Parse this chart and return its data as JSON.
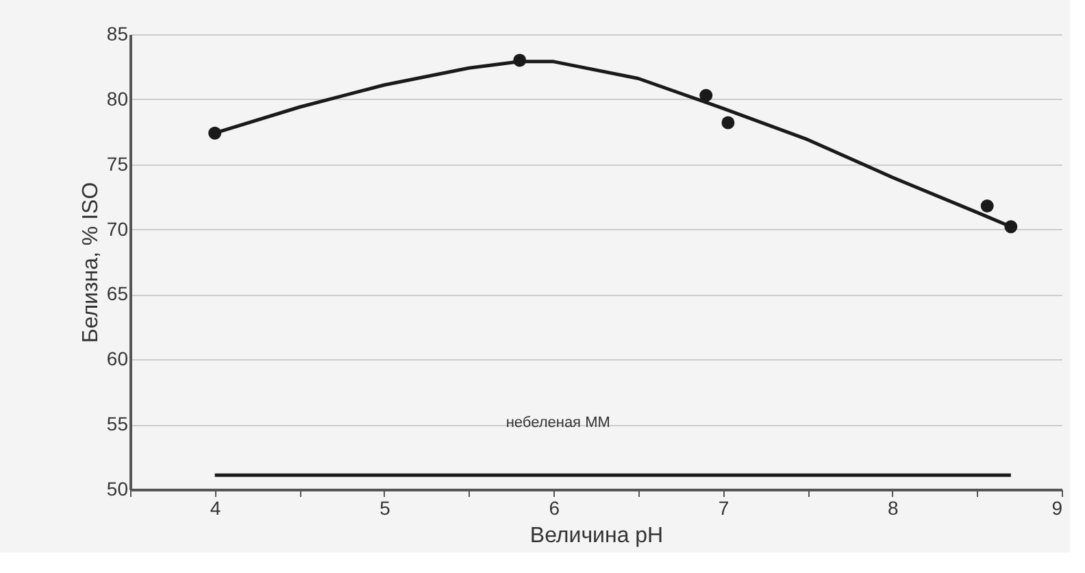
{
  "chart_data": {
    "type": "scatter",
    "xlabel": "Величина pH",
    "ylabel": "Белизна, % ISO",
    "xlim": [
      3.5,
      9
    ],
    "xticks": [
      {
        "value": 3.5,
        "label": null
      },
      4,
      {
        "value": 4.5,
        "label": null
      },
      5,
      {
        "value": 5.5,
        "label": null
      },
      6,
      {
        "value": 6.5,
        "label": null
      },
      7,
      {
        "value": 7.5,
        "label": null
      },
      8,
      {
        "value": 8.5,
        "label": null
      },
      9
    ],
    "ylim": [
      50,
      85
    ],
    "yticks": [
      50,
      55,
      60,
      65,
      70,
      75,
      80,
      85
    ],
    "grid": "y",
    "legend": false,
    "series": [
      {
        "color": "#1a1a1a",
        "marker": "circle",
        "x": [
          4,
          5.8,
          6.9,
          7.03,
          8.56,
          8.7
        ],
        "values": [
          77.4,
          83.0,
          80.3,
          78.2,
          71.8,
          70.2
        ]
      },
      {
        "type": "line",
        "color": "#1a1a1a",
        "marker": "none",
        "x": [
          4,
          4.5,
          5,
          5.5,
          5.8,
          6,
          6.5,
          7,
          7.5,
          8,
          8.5,
          8.7
        ],
        "values": [
          77.4,
          79.4,
          81.1,
          82.4,
          82.9,
          82.9,
          81.6,
          79.3,
          76.9,
          74.0,
          71.3,
          70.2
        ]
      },
      {
        "type": "line",
        "name": "небеленая ММ",
        "color": "#1a1a1a",
        "marker": "none",
        "x": [
          4,
          8.7
        ],
        "values": [
          51.1,
          51.1
        ]
      }
    ]
  }
}
